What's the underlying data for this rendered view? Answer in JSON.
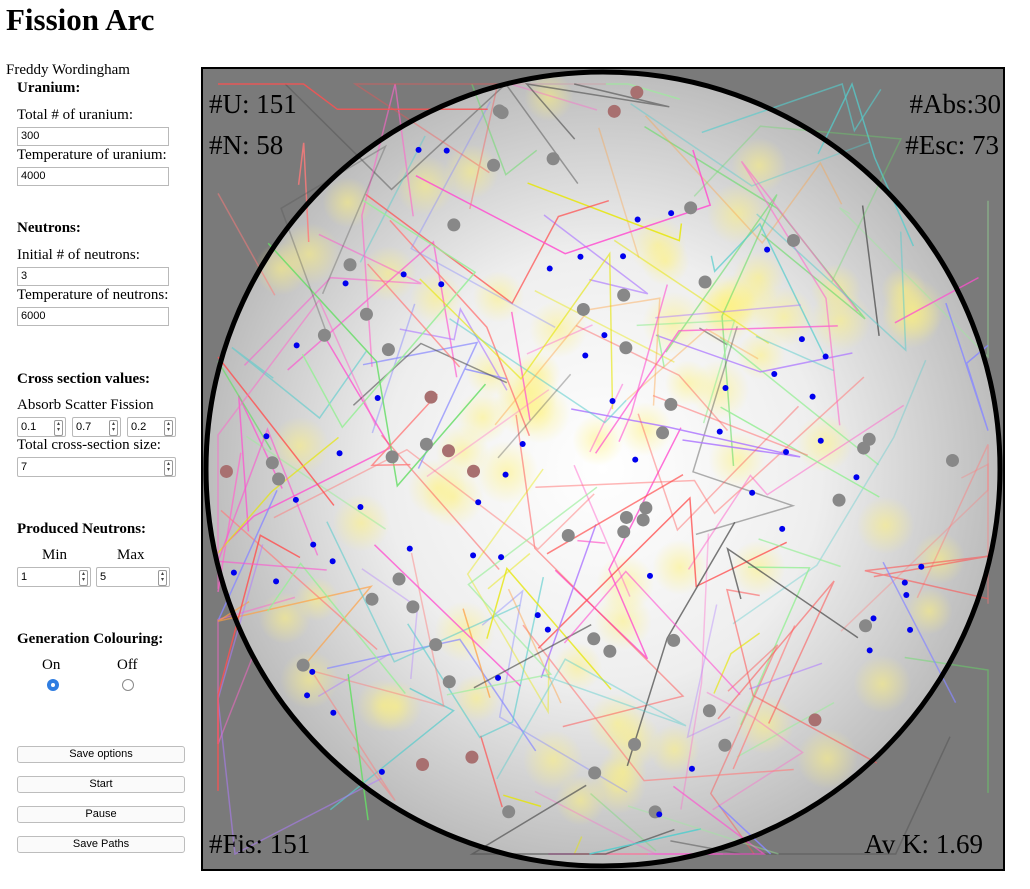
{
  "title": "Fission Arc",
  "author": "Freddy Wordingham",
  "uranium": {
    "heading": "Uranium:",
    "total_label": "Total # of uranium:",
    "total_value": "300",
    "temp_label": "Temperature of uranium:",
    "temp_value": "4000"
  },
  "neutrons": {
    "heading": "Neutrons:",
    "initial_label": "Initial # of neutrons:",
    "initial_value": "3",
    "temp_label": "Temperature of neutrons:",
    "temp_value": "6000"
  },
  "cross_section": {
    "heading": "Cross section values:",
    "sublabel": "Absorb Scatter Fission",
    "absorb": "0.1",
    "scatter": "0.7",
    "fission": "0.2",
    "size_label": "Total cross-section size:",
    "size_value": "7"
  },
  "produced": {
    "heading": "Produced Neutrons:",
    "min_label": "Min",
    "max_label": "Max",
    "min_value": "1",
    "max_value": "5"
  },
  "colouring": {
    "heading": "Generation Colouring:",
    "on_label": "On",
    "off_label": "Off",
    "selected": "On"
  },
  "buttons": {
    "save_options": "Save options",
    "start": "Start",
    "pause": "Pause",
    "save_paths": "Save Paths"
  },
  "stats": {
    "u": "#U: 151",
    "n": "#N: 58",
    "abs": "#Abs:30",
    "esc": "#Esc: 73",
    "fis": "#Fis: 151",
    "avk": "Av K: 1.69"
  },
  "colors": {
    "sim_background": "#7a7a7a",
    "neutron": "#0000ee",
    "uranium": "#888888",
    "fissioned_uranium": "#a87070",
    "selected_radio": "#2f7de1"
  }
}
